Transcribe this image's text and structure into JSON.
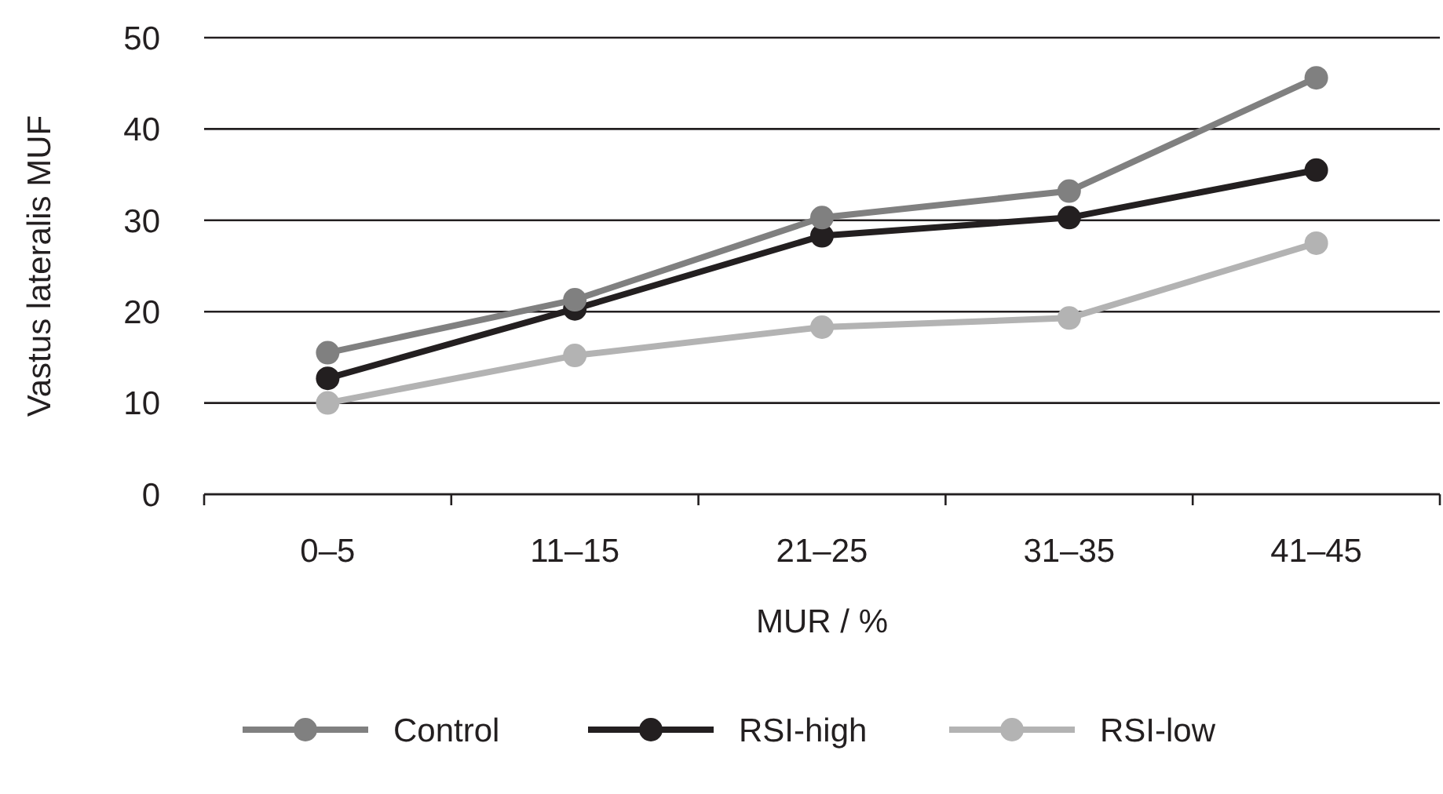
{
  "chart_data": {
    "type": "line",
    "xlabel": "MUR / %",
    "ylabel": "Vastus lateralis MUF",
    "categories": [
      "0–5",
      "11–15",
      "21–25",
      "31–35",
      "41–45"
    ],
    "series": [
      {
        "name": "Control",
        "color": "#808080",
        "values": [
          15.5,
          21.3,
          30.3,
          33.2,
          45.6
        ]
      },
      {
        "name": "RSI-high",
        "color": "#231f20",
        "values": [
          12.7,
          20.3,
          28.3,
          30.3,
          35.5
        ]
      },
      {
        "name": "RSI-low",
        "color": "#b3b3b3",
        "values": [
          10,
          15.2,
          18.3,
          19.3,
          27.5
        ]
      }
    ],
    "ylim": [
      0,
      50
    ],
    "yticks": [
      0,
      10,
      20,
      30,
      40,
      50
    ],
    "grid": "y",
    "legend": "bottom",
    "marker": "circle",
    "line_style": "solid"
  }
}
